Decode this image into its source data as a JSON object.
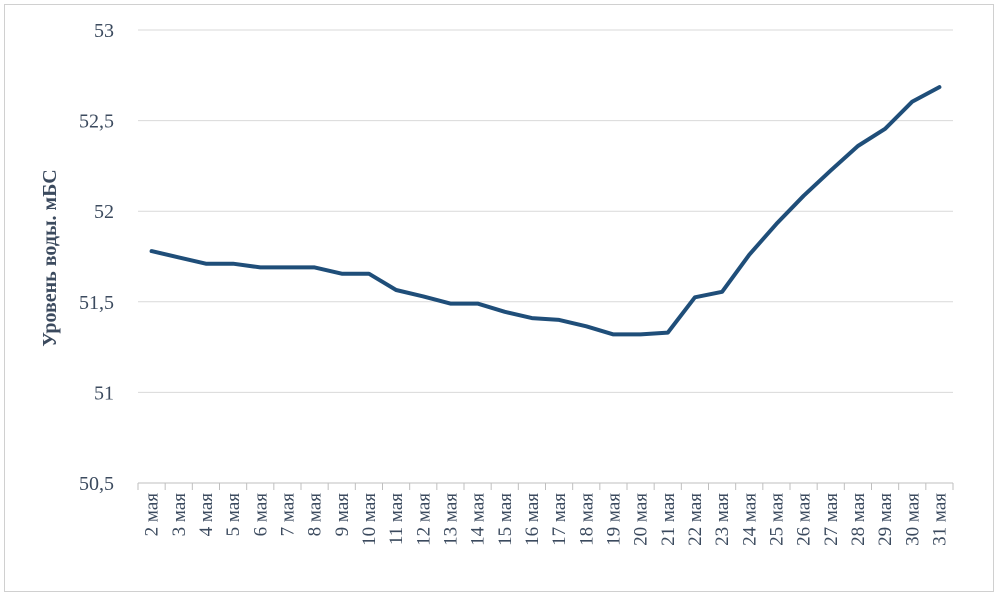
{
  "chart_data": {
    "type": "line",
    "title": "",
    "xlabel": "",
    "ylabel": "Уровень воды. мБС",
    "categories": [
      "2 мая",
      "3 мая",
      "4 мая",
      "5 мая",
      "6 мая",
      "7 мая",
      "8 мая",
      "9 мая",
      "10 мая",
      "11 мая",
      "12 мая",
      "13 мая",
      "14 мая",
      "15 мая",
      "16 мая",
      "17 мая",
      "18 мая",
      "19 мая",
      "20 мая",
      "21 мая",
      "22 мая",
      "23 мая",
      "24 мая",
      "25 мая",
      "26 мая",
      "27 мая",
      "28 мая",
      "29 мая",
      "30 мая",
      "31 мая"
    ],
    "series": [
      {
        "values": [
          51.78,
          51.745,
          51.71,
          51.71,
          51.69,
          51.69,
          51.69,
          51.655,
          51.655,
          51.565,
          51.53,
          51.49,
          51.49,
          51.445,
          51.41,
          51.4,
          51.365,
          51.32,
          51.32,
          51.33,
          51.525,
          51.555,
          51.76,
          51.93,
          52.085,
          52.225,
          52.36,
          52.455,
          52.605,
          52.685
        ]
      }
    ],
    "ylim": [
      50.5,
      53
    ],
    "yticks": [
      "50,5",
      "51",
      "51,5",
      "52",
      "52,5",
      "53"
    ],
    "grid": true,
    "legend": "none",
    "colors": {
      "line": "#1f4e79",
      "grid": "#d9d9d9",
      "text": "#3b4a5e"
    }
  }
}
